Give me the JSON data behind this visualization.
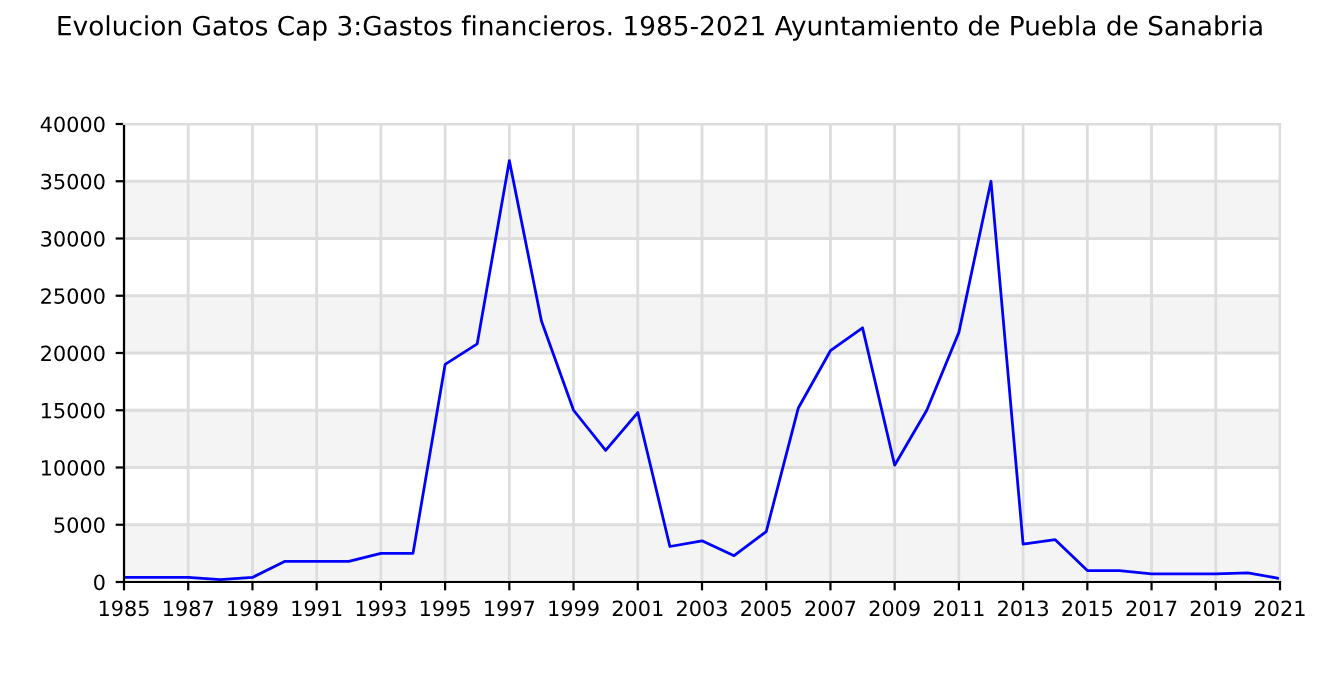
{
  "chart_data": {
    "type": "line",
    "title": "Evolucion Gatos Cap 3:Gastos financieros. 1985-2021 Ayuntamiento de Puebla de Sanabria",
    "x": [
      1985,
      1986,
      1987,
      1988,
      1989,
      1990,
      1991,
      1992,
      1993,
      1994,
      1995,
      1996,
      1997,
      1998,
      1999,
      2000,
      2001,
      2002,
      2003,
      2004,
      2005,
      2006,
      2007,
      2008,
      2009,
      2010,
      2011,
      2012,
      2013,
      2014,
      2015,
      2016,
      2017,
      2018,
      2019,
      2020,
      2021
    ],
    "series": [
      {
        "color": "#0000ff",
        "values": [
          400,
          400,
          400,
          200,
          400,
          1800,
          1800,
          1800,
          2500,
          2500,
          19000,
          20800,
          36800,
          22800,
          15000,
          11500,
          14800,
          3100,
          3600,
          2300,
          4400,
          15200,
          20200,
          22200,
          10200,
          15000,
          21800,
          35000,
          3300,
          3700,
          1000,
          1000,
          700,
          700,
          700,
          800,
          300
        ]
      }
    ],
    "xlim": [
      1985,
      2021
    ],
    "xticks": [
      1985,
      1987,
      1989,
      1991,
      1993,
      1995,
      1997,
      1999,
      2001,
      2003,
      2005,
      2007,
      2009,
      2011,
      2013,
      2015,
      2017,
      2019,
      2021
    ],
    "ylim": [
      0,
      40000
    ],
    "yticks": [
      0,
      5000,
      10000,
      15000,
      20000,
      25000,
      30000,
      35000,
      40000
    ],
    "grid": true,
    "marker": "none",
    "line_style": "solid"
  }
}
